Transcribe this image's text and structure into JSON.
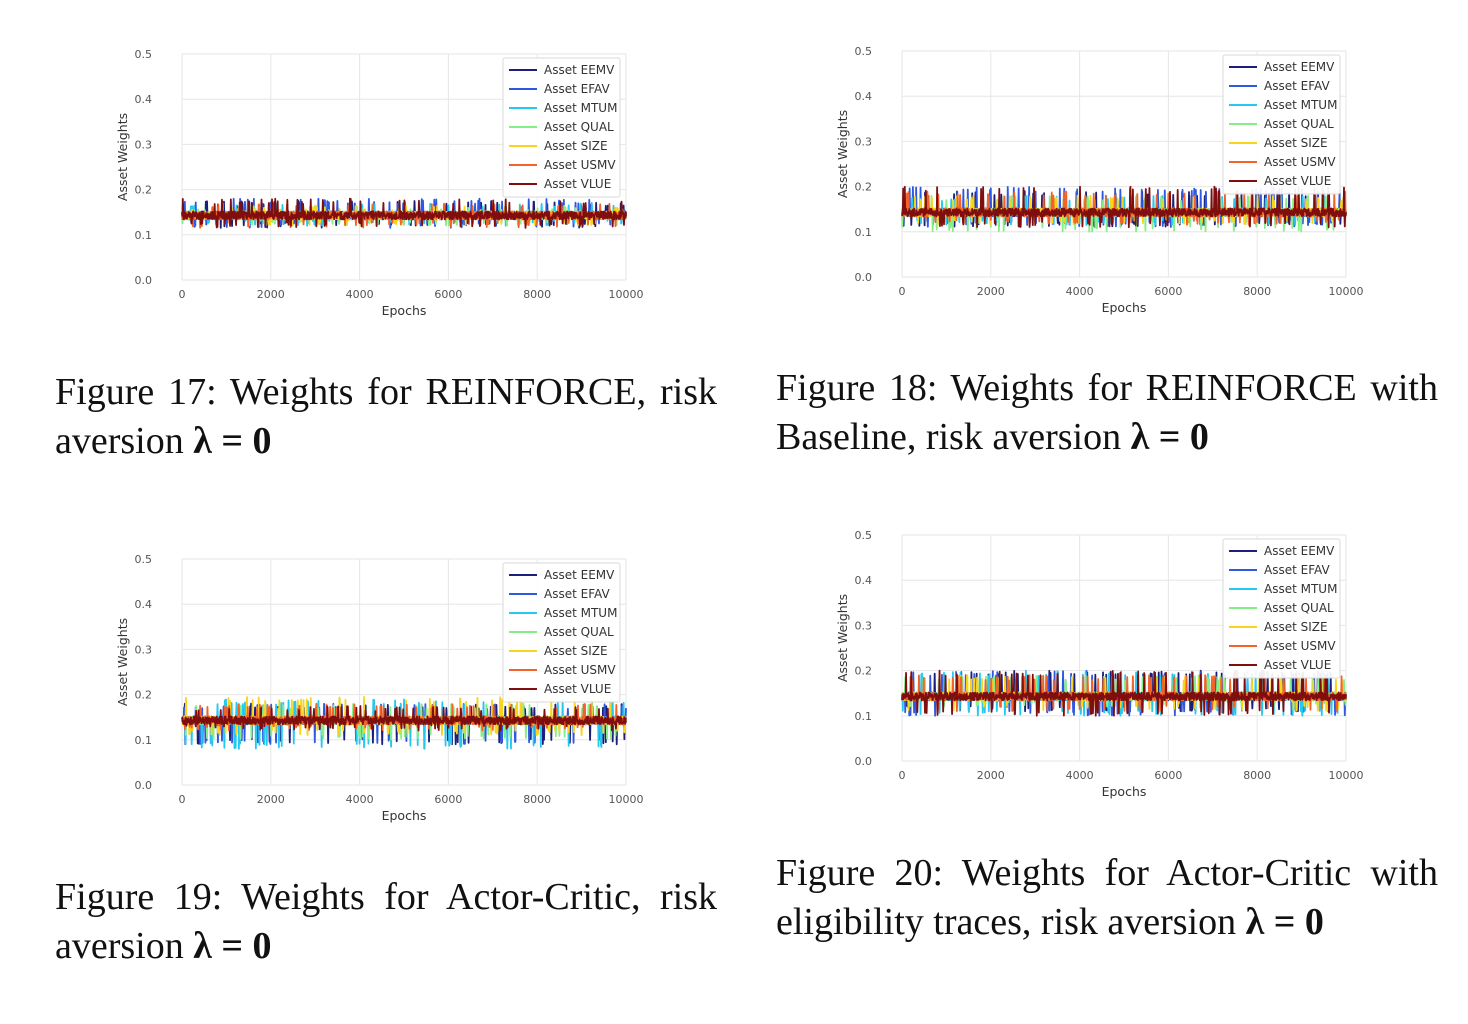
{
  "chart_data": [
    {
      "type": "line",
      "figure": "Figure 17",
      "xlabel": "Epochs",
      "ylabel": "Asset Weights",
      "xlim": [
        0,
        10000
      ],
      "ylim": [
        0,
        0.5
      ],
      "xticks": [
        "0",
        "2000",
        "4000",
        "6000",
        "8000",
        "10000"
      ],
      "yticks": [
        "0.0",
        "0.1",
        "0.2",
        "0.3",
        "0.4",
        "0.5"
      ],
      "grid": true,
      "legend": "top-right",
      "x": [
        0,
        10000
      ],
      "series": [
        {
          "name": "Asset EEMV",
          "values": [
            0.1429,
            0.1429
          ],
          "range": [
            0.115,
            0.175
          ]
        },
        {
          "name": "Asset EFAV",
          "values": [
            0.1429,
            0.1429
          ],
          "range": [
            0.115,
            0.18
          ]
        },
        {
          "name": "Asset MTUM",
          "values": [
            0.1429,
            0.1429
          ],
          "range": [
            0.12,
            0.17
          ]
        },
        {
          "name": "Asset QUAL",
          "values": [
            0.1429,
            0.1429
          ],
          "range": [
            0.12,
            0.165
          ]
        },
        {
          "name": "Asset SIZE",
          "values": [
            0.1429,
            0.1429
          ],
          "range": [
            0.12,
            0.165
          ]
        },
        {
          "name": "Asset USMV",
          "values": [
            0.1429,
            0.1429
          ],
          "range": [
            0.115,
            0.17
          ]
        },
        {
          "name": "Asset VLUE",
          "values": [
            0.1429,
            0.1429
          ],
          "range": [
            0.115,
            0.18
          ]
        }
      ],
      "caption": {
        "text": "Figure 17: Weights for REINFORCE, risk aversion ",
        "math": "λ = 0"
      }
    },
    {
      "type": "line",
      "figure": "Figure 18",
      "xlabel": "Epochs",
      "ylabel": "Asset Weights",
      "xlim": [
        0,
        10000
      ],
      "ylim": [
        0,
        0.5
      ],
      "xticks": [
        "0",
        "2000",
        "4000",
        "6000",
        "8000",
        "10000"
      ],
      "yticks": [
        "0.0",
        "0.1",
        "0.2",
        "0.3",
        "0.4",
        "0.5"
      ],
      "grid": true,
      "legend": "top-right",
      "x": [
        0,
        10000
      ],
      "series": [
        {
          "name": "Asset EEMV",
          "values": [
            0.1429,
            0.1429
          ],
          "range": [
            0.11,
            0.19
          ]
        },
        {
          "name": "Asset EFAV",
          "values": [
            0.1429,
            0.1429
          ],
          "range": [
            0.11,
            0.2
          ]
        },
        {
          "name": "Asset MTUM",
          "values": [
            0.1429,
            0.1429
          ],
          "range": [
            0.115,
            0.18
          ]
        },
        {
          "name": "Asset QUAL",
          "values": [
            0.1429,
            0.1429
          ],
          "range": [
            0.1,
            0.18
          ]
        },
        {
          "name": "Asset SIZE",
          "values": [
            0.1429,
            0.1429
          ],
          "range": [
            0.115,
            0.18
          ]
        },
        {
          "name": "Asset USMV",
          "values": [
            0.1429,
            0.1429
          ],
          "range": [
            0.115,
            0.19
          ]
        },
        {
          "name": "Asset VLUE",
          "values": [
            0.1429,
            0.1429
          ],
          "range": [
            0.11,
            0.2
          ]
        }
      ],
      "caption": {
        "text": "Figure 18: Weights for REINFORCE with Baseline, risk aversion ",
        "math": "λ = 0"
      }
    },
    {
      "type": "line",
      "figure": "Figure 19",
      "xlabel": "Epochs",
      "ylabel": "Asset Weights",
      "xlim": [
        0,
        10000
      ],
      "ylim": [
        0,
        0.5
      ],
      "xticks": [
        "0",
        "2000",
        "4000",
        "6000",
        "8000",
        "10000"
      ],
      "yticks": [
        "0.0",
        "0.1",
        "0.2",
        "0.3",
        "0.4",
        "0.5"
      ],
      "grid": true,
      "legend": "top-right",
      "x": [
        0,
        10000
      ],
      "series": [
        {
          "name": "Asset EEMV",
          "values": [
            0.1429,
            0.1429
          ],
          "range": [
            0.09,
            0.18
          ]
        },
        {
          "name": "Asset EFAV",
          "values": [
            0.1429,
            0.1429
          ],
          "range": [
            0.09,
            0.18
          ]
        },
        {
          "name": "Asset MTUM",
          "values": [
            0.1429,
            0.1429
          ],
          "range": [
            0.08,
            0.19
          ]
        },
        {
          "name": "Asset QUAL",
          "values": [
            0.1429,
            0.1429
          ],
          "range": [
            0.1,
            0.18
          ]
        },
        {
          "name": "Asset SIZE",
          "values": [
            0.1429,
            0.1429
          ],
          "range": [
            0.11,
            0.195
          ]
        },
        {
          "name": "Asset USMV",
          "values": [
            0.1429,
            0.1429
          ],
          "range": [
            0.12,
            0.18
          ]
        },
        {
          "name": "Asset VLUE",
          "values": [
            0.1429,
            0.1429
          ],
          "range": [
            0.12,
            0.175
          ]
        }
      ],
      "caption": {
        "text": "Figure 19: Weights for Actor-Critic, risk aversion ",
        "math": "λ = 0"
      }
    },
    {
      "type": "line",
      "figure": "Figure 20",
      "xlabel": "Epochs",
      "ylabel": "Asset Weights",
      "xlim": [
        0,
        10000
      ],
      "ylim": [
        0,
        0.5
      ],
      "xticks": [
        "0",
        "2000",
        "4000",
        "6000",
        "8000",
        "10000"
      ],
      "yticks": [
        "0.0",
        "0.1",
        "0.2",
        "0.3",
        "0.4",
        "0.5"
      ],
      "grid": true,
      "legend": "top-right",
      "x": [
        0,
        10000
      ],
      "series": [
        {
          "name": "Asset EEMV",
          "values": [
            0.1429,
            0.1429
          ],
          "range": [
            0.11,
            0.2
          ]
        },
        {
          "name": "Asset EFAV",
          "values": [
            0.1429,
            0.1429
          ],
          "range": [
            0.1,
            0.2
          ]
        },
        {
          "name": "Asset MTUM",
          "values": [
            0.1429,
            0.1429
          ],
          "range": [
            0.1,
            0.2
          ]
        },
        {
          "name": "Asset QUAL",
          "values": [
            0.1429,
            0.1429
          ],
          "range": [
            0.12,
            0.19
          ]
        },
        {
          "name": "Asset SIZE",
          "values": [
            0.1429,
            0.1429
          ],
          "range": [
            0.11,
            0.19
          ]
        },
        {
          "name": "Asset USMV",
          "values": [
            0.1429,
            0.1429
          ],
          "range": [
            0.11,
            0.19
          ]
        },
        {
          "name": "Asset VLUE",
          "values": [
            0.1429,
            0.1429
          ],
          "range": [
            0.1,
            0.2
          ]
        }
      ],
      "caption": {
        "text": "Figure 20: Weights for Actor-Critic with eligibility traces, risk aversion ",
        "math": "λ = 0"
      }
    }
  ],
  "series_colors": [
    "#1b1f7a",
    "#2e58e0",
    "#27c8f0",
    "#86ee86",
    "#f7d51c",
    "#f2622a",
    "#7f0f0f"
  ]
}
